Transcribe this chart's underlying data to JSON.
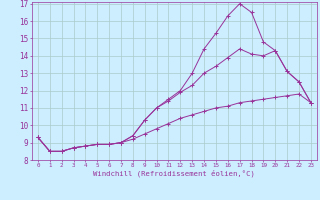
{
  "xlabel": "Windchill (Refroidissement éolien,°C)",
  "background_color": "#cceeff",
  "grid_color": "#aacccc",
  "line_color": "#993399",
  "xmin": 0,
  "xmax": 23,
  "ymin": 8,
  "ymax": 17,
  "x_values": [
    0,
    1,
    2,
    3,
    4,
    5,
    6,
    7,
    8,
    9,
    10,
    11,
    12,
    13,
    14,
    15,
    16,
    17,
    18,
    19,
    20,
    21,
    22,
    23
  ],
  "line1": [
    9.3,
    8.5,
    8.5,
    8.7,
    8.8,
    8.9,
    8.9,
    9.0,
    9.4,
    10.3,
    11.0,
    11.5,
    12.0,
    13.0,
    14.4,
    15.3,
    16.3,
    17.0,
    16.5,
    14.8,
    14.3,
    13.1,
    12.5,
    11.3
  ],
  "line2": [
    9.3,
    8.5,
    8.5,
    8.7,
    8.8,
    8.9,
    8.9,
    9.0,
    9.4,
    10.3,
    11.0,
    11.4,
    11.9,
    12.3,
    13.0,
    13.4,
    13.9,
    14.4,
    14.1,
    14.0,
    14.3,
    13.1,
    12.5,
    11.3
  ],
  "line3": [
    9.3,
    8.5,
    8.5,
    8.7,
    8.8,
    8.9,
    8.9,
    9.0,
    9.2,
    9.5,
    9.8,
    10.1,
    10.4,
    10.6,
    10.8,
    11.0,
    11.1,
    11.3,
    11.4,
    11.5,
    11.6,
    11.7,
    11.8,
    11.3
  ]
}
